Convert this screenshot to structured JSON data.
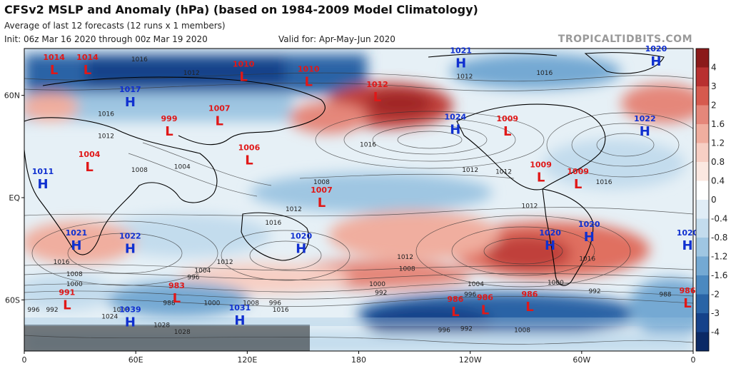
{
  "header": {
    "title": "CFSv2 MSLP and Anomaly (hPa) (based on 1984-2009 Model Climatology)",
    "subtitle": "Average of last 12 forecasts (12 runs x 1 members)",
    "init": "Init: 06z Mar 16 2020 through 00z Mar 19 2020",
    "valid": "Valid for: Apr-May-Jun 2020",
    "brand": "TROPICALTIDBITS.COM"
  },
  "axes": {
    "lat_ticks": [
      {
        "label": "60N",
        "lat": 60
      },
      {
        "label": "EQ",
        "lat": 0
      },
      {
        "label": "60S",
        "lat": -60
      }
    ],
    "lon_ticks": [
      {
        "label": "0",
        "lon": 0
      },
      {
        "label": "60E",
        "lon": 60
      },
      {
        "label": "120E",
        "lon": 120
      },
      {
        "label": "180",
        "lon": 180
      },
      {
        "label": "120W",
        "lon": 240
      },
      {
        "label": "60W",
        "lon": 300
      },
      {
        "label": "0",
        "lon": 360
      }
    ]
  },
  "colors": {
    "high": "#1030d0",
    "low": "#e01818",
    "ocean_neutral": "#e8f1f6"
  },
  "colorbar": {
    "levels": [
      "4",
      "3",
      "2",
      "1.6",
      "1.2",
      "0.8",
      "0.4",
      "0",
      "-0.4",
      "-0.8",
      "-1.2",
      "-1.6",
      "-2",
      "-3",
      "-4"
    ],
    "colors": [
      "#8b1a1a",
      "#b83030",
      "#d65a4e",
      "#e5877a",
      "#f0ae9f",
      "#f7cfc4",
      "#fbe8e1",
      "#ffffff",
      "#e0edf6",
      "#c3dced",
      "#9fc6e2",
      "#74a9d3",
      "#4b89c0",
      "#2a64a6",
      "#15428a",
      "#0b2a66"
    ]
  },
  "pressure_centers": [
    {
      "type": "L",
      "value": "1014",
      "lon": 16,
      "lat": 75
    },
    {
      "type": "L",
      "value": "1014",
      "lon": 34,
      "lat": 75
    },
    {
      "type": "L",
      "value": "1010",
      "lon": 118,
      "lat": 71
    },
    {
      "type": "L",
      "value": "1010",
      "lon": 153,
      "lat": 68
    },
    {
      "type": "L",
      "value": "1012",
      "lon": 190,
      "lat": 59
    },
    {
      "type": "H",
      "value": "1021",
      "lon": 235,
      "lat": 79
    },
    {
      "type": "H",
      "value": "1020",
      "lon": 340,
      "lat": 80
    },
    {
      "type": "H",
      "value": "1017",
      "lon": 57,
      "lat": 56
    },
    {
      "type": "L",
      "value": "1007",
      "lon": 105,
      "lat": 45
    },
    {
      "type": "L",
      "value": "999",
      "lon": 78,
      "lat": 39
    },
    {
      "type": "H",
      "value": "1024",
      "lon": 232,
      "lat": 40
    },
    {
      "type": "L",
      "value": "1009",
      "lon": 260,
      "lat": 39
    },
    {
      "type": "H",
      "value": "1022",
      "lon": 334,
      "lat": 39
    },
    {
      "type": "L",
      "value": "1006",
      "lon": 121,
      "lat": 22
    },
    {
      "type": "L",
      "value": "1004",
      "lon": 35,
      "lat": 18
    },
    {
      "type": "L",
      "value": "1009",
      "lon": 278,
      "lat": 12
    },
    {
      "type": "L",
      "value": "1009",
      "lon": 298,
      "lat": 8
    },
    {
      "type": "H",
      "value": "1011",
      "lon": 10,
      "lat": 8
    },
    {
      "type": "L",
      "value": "1007",
      "lon": 160,
      "lat": -3
    },
    {
      "type": "H",
      "value": "1021",
      "lon": 28,
      "lat": -28
    },
    {
      "type": "H",
      "value": "1022",
      "lon": 57,
      "lat": -30
    },
    {
      "type": "H",
      "value": "1020",
      "lon": 149,
      "lat": -30
    },
    {
      "type": "H",
      "value": "1020",
      "lon": 283,
      "lat": -28
    },
    {
      "type": "H",
      "value": "1020",
      "lon": 304,
      "lat": -23
    },
    {
      "type": "H",
      "value": "1020",
      "lon": 358,
      "lat": -28
    },
    {
      "type": "L",
      "value": "991",
      "lon": 23,
      "lat": -63
    },
    {
      "type": "L",
      "value": "983",
      "lon": 82,
      "lat": -59
    },
    {
      "type": "L",
      "value": "986",
      "lon": 232,
      "lat": -67
    },
    {
      "type": "L",
      "value": "986",
      "lon": 248,
      "lat": -66
    },
    {
      "type": "L",
      "value": "986",
      "lon": 272,
      "lat": -64
    },
    {
      "type": "L",
      "value": "986",
      "lon": 360,
      "lat": -62
    },
    {
      "type": "H",
      "value": "1039",
      "lon": 57,
      "lat": -73
    },
    {
      "type": "H",
      "value": "1031",
      "lon": 116,
      "lat": -72
    }
  ],
  "isobar_labels": [
    {
      "text": "1016",
      "lon": 62,
      "lat": 80
    },
    {
      "text": "1012",
      "lon": 90,
      "lat": 72
    },
    {
      "text": "1016",
      "lon": 280,
      "lat": 72
    },
    {
      "text": "1012",
      "lon": 237,
      "lat": 70
    },
    {
      "text": "1016",
      "lon": 44,
      "lat": 48
    },
    {
      "text": "1012",
      "lon": 44,
      "lat": 35
    },
    {
      "text": "1008",
      "lon": 62,
      "lat": 15
    },
    {
      "text": "1004",
      "lon": 85,
      "lat": 17
    },
    {
      "text": "1012",
      "lon": 240,
      "lat": 15
    },
    {
      "text": "1016",
      "lon": 185,
      "lat": 30
    },
    {
      "text": "1008",
      "lon": 160,
      "lat": 8
    },
    {
      "text": "1012",
      "lon": 258,
      "lat": 14
    },
    {
      "text": "1016",
      "lon": 312,
      "lat": 8
    },
    {
      "text": "1012",
      "lon": 272,
      "lat": -6
    },
    {
      "text": "1016",
      "lon": 134,
      "lat": -16
    },
    {
      "text": "1012",
      "lon": 145,
      "lat": -8
    },
    {
      "text": "1016",
      "lon": 20,
      "lat": -39
    },
    {
      "text": "1012",
      "lon": 108,
      "lat": -39
    },
    {
      "text": "1008",
      "lon": 27,
      "lat": -46
    },
    {
      "text": "1004",
      "lon": 96,
      "lat": -44
    },
    {
      "text": "1000",
      "lon": 27,
      "lat": -52
    },
    {
      "text": "996",
      "lon": 91,
      "lat": -48
    },
    {
      "text": "1012",
      "lon": 205,
      "lat": -36
    },
    {
      "text": "1008",
      "lon": 206,
      "lat": -43
    },
    {
      "text": "1000",
      "lon": 190,
      "lat": -52
    },
    {
      "text": "992",
      "lon": 192,
      "lat": -57
    },
    {
      "text": "1004",
      "lon": 243,
      "lat": -52
    },
    {
      "text": "996",
      "lon": 240,
      "lat": -58
    },
    {
      "text": "1016",
      "lon": 303,
      "lat": -37
    },
    {
      "text": "1000",
      "lon": 286,
      "lat": -51
    },
    {
      "text": "992",
      "lon": 307,
      "lat": -56
    },
    {
      "text": "988",
      "lon": 345,
      "lat": -58
    },
    {
      "text": "988",
      "lon": 78,
      "lat": -63
    },
    {
      "text": "1000",
      "lon": 101,
      "lat": -63
    },
    {
      "text": "996",
      "lon": 135,
      "lat": -63
    },
    {
      "text": "1008",
      "lon": 52,
      "lat": -67
    },
    {
      "text": "1024",
      "lon": 46,
      "lat": -71
    },
    {
      "text": "1028",
      "lon": 74,
      "lat": -76
    },
    {
      "text": "1028",
      "lon": 85,
      "lat": -80
    },
    {
      "text": "996",
      "lon": 5,
      "lat": -67
    },
    {
      "text": "992",
      "lon": 15,
      "lat": -67
    },
    {
      "text": "1016",
      "lon": 138,
      "lat": -67
    },
    {
      "text": "1008",
      "lon": 122,
      "lat": -63
    },
    {
      "text": "996",
      "lon": 226,
      "lat": -79
    },
    {
      "text": "992",
      "lon": 238,
      "lat": -78
    },
    {
      "text": "1008",
      "lon": 268,
      "lat": -79
    }
  ]
}
